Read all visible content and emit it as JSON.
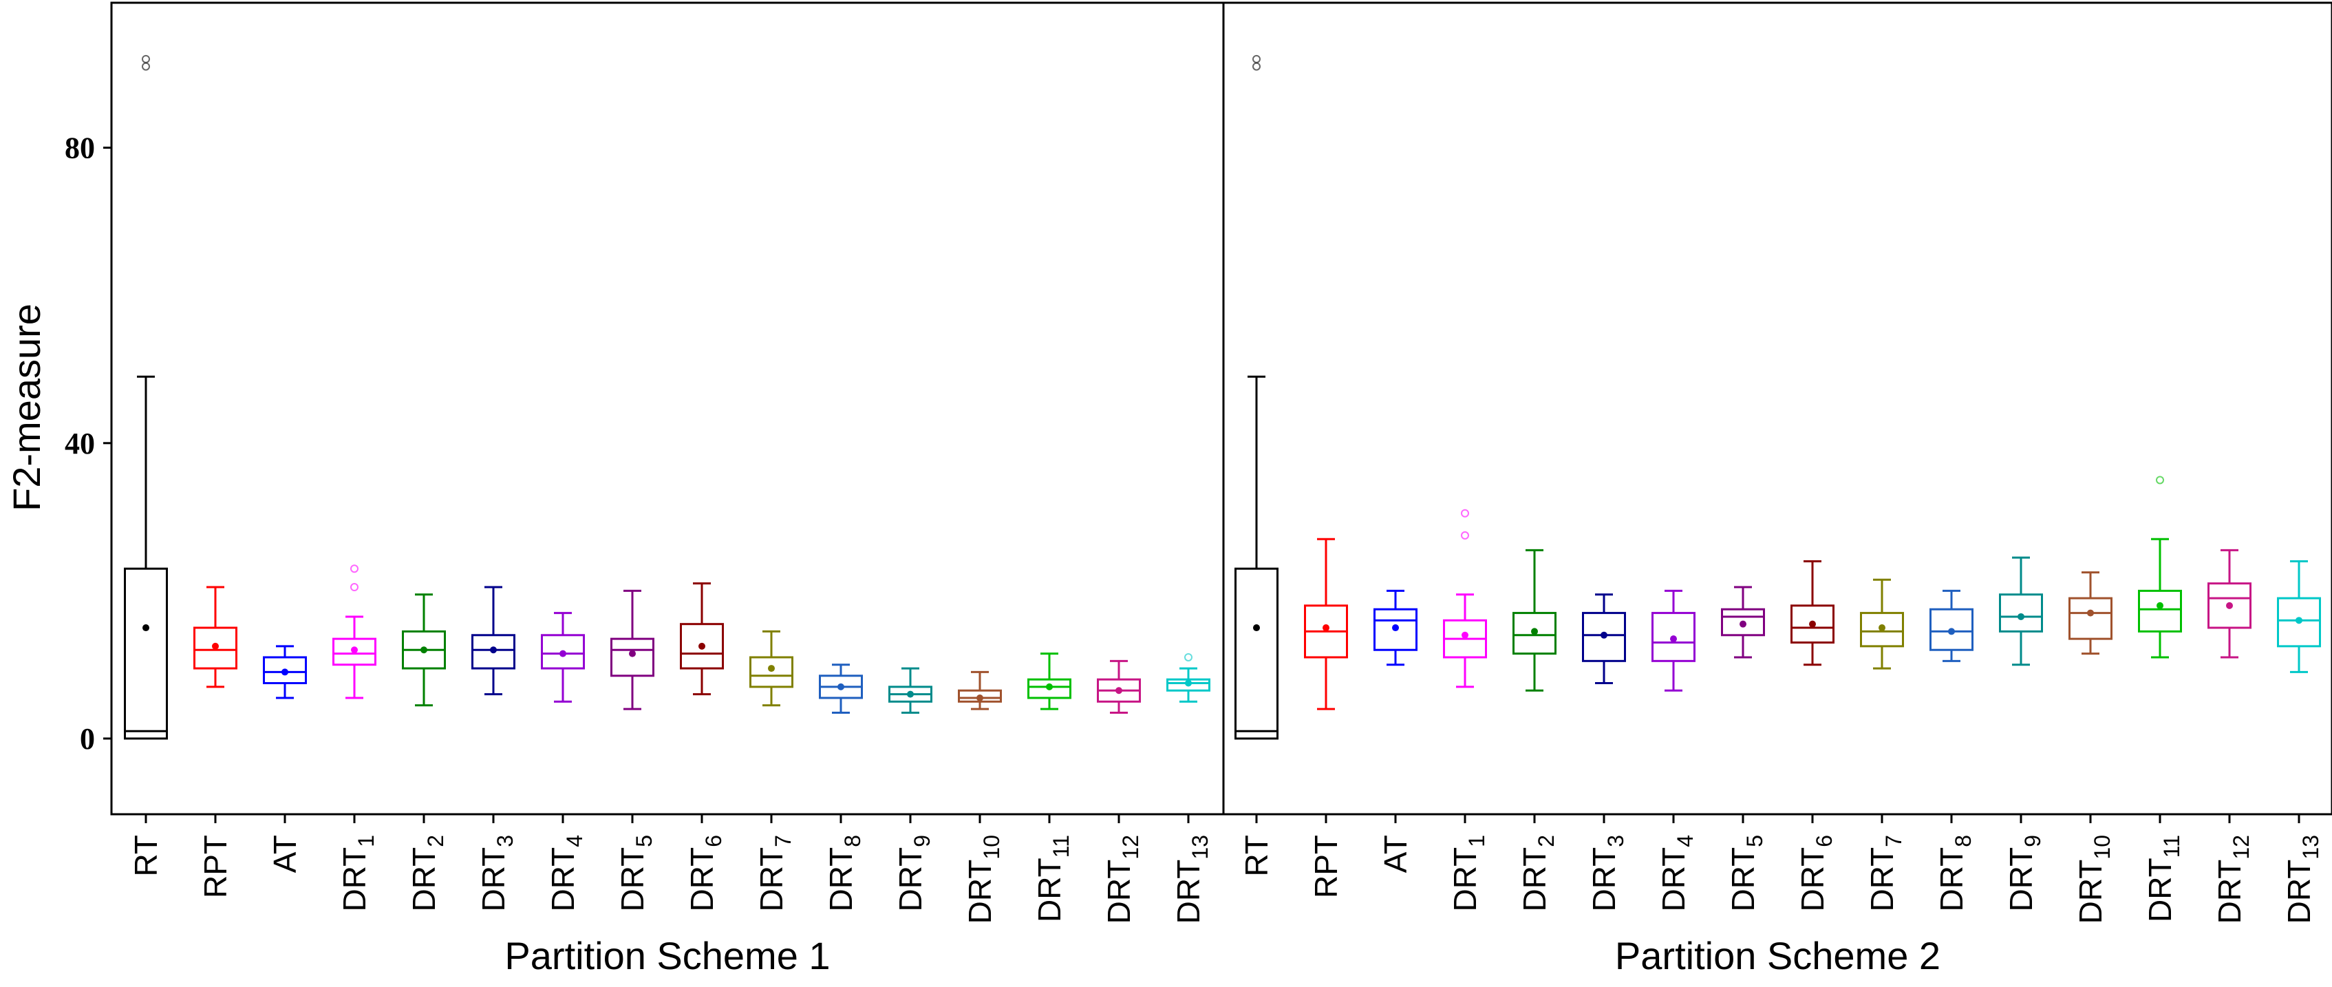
{
  "chart_data": {
    "type": "box",
    "ylabel": "F2-measure",
    "yticks": [
      0,
      40,
      80
    ],
    "ylim": [
      -10,
      100
    ],
    "panels": [
      {
        "xlabel": "Partition Scheme 1",
        "boxes": [
          {
            "label": "RT",
            "sub": "",
            "color": "#000000",
            "whisker_low": 0,
            "q1": 0,
            "median": 1,
            "q3": 23,
            "whisker_high": 49,
            "mean": 15,
            "outliers": [
              91,
              92
            ]
          },
          {
            "label": "RPT",
            "sub": "",
            "color": "#ff0000",
            "whisker_low": 7,
            "q1": 9.5,
            "median": 12,
            "q3": 15,
            "whisker_high": 20.5,
            "mean": 12.5,
            "outliers": []
          },
          {
            "label": "AT",
            "sub": "",
            "color": "#0000ff",
            "whisker_low": 5.5,
            "q1": 7.5,
            "median": 9,
            "q3": 11,
            "whisker_high": 12.5,
            "mean": 9,
            "outliers": []
          },
          {
            "label": "DRT",
            "sub": "1",
            "color": "#ff00ff",
            "whisker_low": 5.5,
            "q1": 10,
            "median": 11.5,
            "q3": 13.5,
            "whisker_high": 16.5,
            "mean": 12,
            "outliers": [
              20.5,
              23
            ]
          },
          {
            "label": "DRT",
            "sub": "2",
            "color": "#008000",
            "whisker_low": 4.5,
            "q1": 9.5,
            "median": 12,
            "q3": 14.5,
            "whisker_high": 19.5,
            "mean": 12,
            "outliers": []
          },
          {
            "label": "DRT",
            "sub": "3",
            "color": "#00008b",
            "whisker_low": 6,
            "q1": 9.5,
            "median": 12,
            "q3": 14,
            "whisker_high": 20.5,
            "mean": 12,
            "outliers": []
          },
          {
            "label": "DRT",
            "sub": "4",
            "color": "#9400d3",
            "whisker_low": 5,
            "q1": 9.5,
            "median": 11.5,
            "q3": 14,
            "whisker_high": 17,
            "mean": 11.5,
            "outliers": []
          },
          {
            "label": "DRT",
            "sub": "5",
            "color": "#800080",
            "whisker_low": 4,
            "q1": 8.5,
            "median": 12,
            "q3": 13.5,
            "whisker_high": 20,
            "mean": 11.5,
            "outliers": []
          },
          {
            "label": "DRT",
            "sub": "6",
            "color": "#8b0000",
            "whisker_low": 6,
            "q1": 9.5,
            "median": 11.5,
            "q3": 15.5,
            "whisker_high": 21,
            "mean": 12.5,
            "outliers": []
          },
          {
            "label": "DRT",
            "sub": "7",
            "color": "#808000",
            "whisker_low": 4.5,
            "q1": 7,
            "median": 8.5,
            "q3": 11,
            "whisker_high": 14.5,
            "mean": 9.5,
            "outliers": []
          },
          {
            "label": "DRT",
            "sub": "8",
            "color": "#1f5fbf",
            "whisker_low": 3.5,
            "q1": 5.5,
            "median": 7,
            "q3": 8.5,
            "whisker_high": 10,
            "mean": 7,
            "outliers": []
          },
          {
            "label": "DRT",
            "sub": "9",
            "color": "#008b8b",
            "whisker_low": 3.5,
            "q1": 5,
            "median": 6,
            "q3": 7,
            "whisker_high": 9.5,
            "mean": 6,
            "outliers": []
          },
          {
            "label": "DRT",
            "sub": "10",
            "color": "#a0522d",
            "whisker_low": 4,
            "q1": 5,
            "median": 5.5,
            "q3": 6.5,
            "whisker_high": 9,
            "mean": 5.5,
            "outliers": []
          },
          {
            "label": "DRT",
            "sub": "11",
            "color": "#00c000",
            "whisker_low": 4,
            "q1": 5.5,
            "median": 7,
            "q3": 8,
            "whisker_high": 11.5,
            "mean": 7,
            "outliers": []
          },
          {
            "label": "DRT",
            "sub": "12",
            "color": "#c71585",
            "whisker_low": 3.5,
            "q1": 5,
            "median": 6.5,
            "q3": 8,
            "whisker_high": 10.5,
            "mean": 6.5,
            "outliers": []
          },
          {
            "label": "DRT",
            "sub": "13",
            "color": "#00c8c8",
            "whisker_low": 5,
            "q1": 6.5,
            "median": 7.5,
            "q3": 8,
            "whisker_high": 9.5,
            "mean": 7.5,
            "outliers": [
              11
            ]
          }
        ]
      },
      {
        "xlabel": "Partition Scheme 2",
        "boxes": [
          {
            "label": "RT",
            "sub": "",
            "color": "#000000",
            "whisker_low": 0,
            "q1": 0,
            "median": 1,
            "q3": 23,
            "whisker_high": 49,
            "mean": 15,
            "outliers": [
              91,
              92
            ]
          },
          {
            "label": "RPT",
            "sub": "",
            "color": "#ff0000",
            "whisker_low": 4,
            "q1": 11,
            "median": 14.5,
            "q3": 18,
            "whisker_high": 27,
            "mean": 15,
            "outliers": []
          },
          {
            "label": "AT",
            "sub": "",
            "color": "#0000ff",
            "whisker_low": 10,
            "q1": 12,
            "median": 16,
            "q3": 17.5,
            "whisker_high": 20,
            "mean": 15,
            "outliers": []
          },
          {
            "label": "DRT",
            "sub": "1",
            "color": "#ff00ff",
            "whisker_low": 7,
            "q1": 11,
            "median": 13.5,
            "q3": 16,
            "whisker_high": 19.5,
            "mean": 14,
            "outliers": [
              27.5,
              30.5
            ]
          },
          {
            "label": "DRT",
            "sub": "2",
            "color": "#008000",
            "whisker_low": 6.5,
            "q1": 11.5,
            "median": 14,
            "q3": 17,
            "whisker_high": 25.5,
            "mean": 14.5,
            "outliers": []
          },
          {
            "label": "DRT",
            "sub": "3",
            "color": "#00008b",
            "whisker_low": 7.5,
            "q1": 10.5,
            "median": 14,
            "q3": 17,
            "whisker_high": 19.5,
            "mean": 14,
            "outliers": []
          },
          {
            "label": "DRT",
            "sub": "4",
            "color": "#9400d3",
            "whisker_low": 6.5,
            "q1": 10.5,
            "median": 13,
            "q3": 17,
            "whisker_high": 20,
            "mean": 13.5,
            "outliers": []
          },
          {
            "label": "DRT",
            "sub": "5",
            "color": "#800080",
            "whisker_low": 11,
            "q1": 14,
            "median": 16.5,
            "q3": 17.5,
            "whisker_high": 20.5,
            "mean": 15.5,
            "outliers": []
          },
          {
            "label": "DRT",
            "sub": "6",
            "color": "#8b0000",
            "whisker_low": 10,
            "q1": 13,
            "median": 15,
            "q3": 18,
            "whisker_high": 24,
            "mean": 15.5,
            "outliers": []
          },
          {
            "label": "DRT",
            "sub": "7",
            "color": "#808000",
            "whisker_low": 9.5,
            "q1": 12.5,
            "median": 14.5,
            "q3": 17,
            "whisker_high": 21.5,
            "mean": 15,
            "outliers": []
          },
          {
            "label": "DRT",
            "sub": "8",
            "color": "#1f5fbf",
            "whisker_low": 10.5,
            "q1": 12,
            "median": 14.5,
            "q3": 17.5,
            "whisker_high": 20,
            "mean": 14.5,
            "outliers": []
          },
          {
            "label": "DRT",
            "sub": "9",
            "color": "#008b8b",
            "whisker_low": 10,
            "q1": 14.5,
            "median": 16.5,
            "q3": 19.5,
            "whisker_high": 24.5,
            "mean": 16.5,
            "outliers": []
          },
          {
            "label": "DRT",
            "sub": "10",
            "color": "#a0522d",
            "whisker_low": 11.5,
            "q1": 13.5,
            "median": 17,
            "q3": 19,
            "whisker_high": 22.5,
            "mean": 17,
            "outliers": []
          },
          {
            "label": "DRT",
            "sub": "11",
            "color": "#00c000",
            "whisker_low": 11,
            "q1": 14.5,
            "median": 17.5,
            "q3": 20,
            "whisker_high": 27,
            "mean": 18,
            "outliers": [
              35
            ]
          },
          {
            "label": "DRT",
            "sub": "12",
            "color": "#c71585",
            "whisker_low": 11,
            "q1": 15,
            "median": 19,
            "q3": 21,
            "whisker_high": 25.5,
            "mean": 18,
            "outliers": []
          },
          {
            "label": "DRT",
            "sub": "13",
            "color": "#00c8c8",
            "whisker_low": 9,
            "q1": 12.5,
            "median": 16,
            "q3": 19,
            "whisker_high": 24,
            "mean": 16,
            "outliers": []
          }
        ]
      }
    ]
  }
}
